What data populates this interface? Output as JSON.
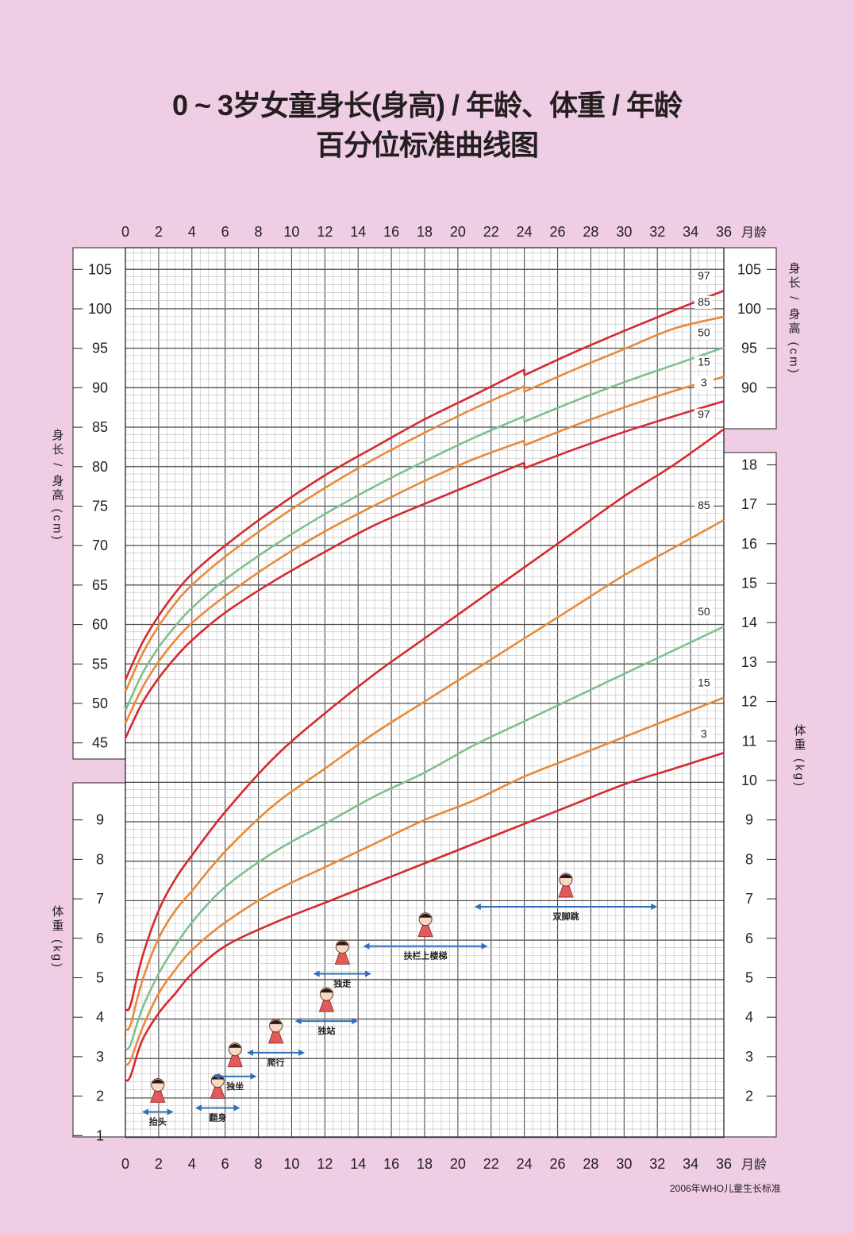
{
  "header": {
    "title_line1": "0 ~ 3岁女童身长(身高) / 年龄、体重 / 年龄",
    "title_line2": "百分位标准曲线图"
  },
  "footer": {
    "source": "2006年WHO儿童生长标准"
  },
  "chart_data": {
    "type": "line",
    "x_axis": {
      "label": "月龄",
      "ticks": [
        0,
        2,
        4,
        6,
        8,
        10,
        12,
        14,
        16,
        18,
        20,
        22,
        24,
        26,
        28,
        30,
        32,
        34,
        36
      ],
      "range": [
        0,
        36
      ]
    },
    "grid": true,
    "colors": {
      "p3": "#d42a30",
      "p15": "#e88a3a",
      "p50": "#7fc08e",
      "p85": "#e88a3a",
      "p97": "#d42a30",
      "milestone": "#2f6fba",
      "grid_major": "#4a4a4a",
      "grid_minor": "#bcbcbc",
      "bg_plot": "#ffffff"
    },
    "length": {
      "label": "身长 / 身高 (cm)",
      "y_ticks": [
        45,
        50,
        55,
        60,
        65,
        70,
        75,
        80,
        85,
        90,
        95,
        100,
        105
      ],
      "right_ticks": [
        90,
        95,
        100,
        105
      ],
      "y_range": [
        42,
        108
      ],
      "series": [
        {
          "name": "97",
          "x": [
            0,
            1,
            2,
            3,
            4,
            6,
            9,
            12,
            15,
            18,
            21,
            24,
            24,
            27,
            30,
            33,
            36
          ],
          "y": [
            53.0,
            57.6,
            61.1,
            64.0,
            66.4,
            70.0,
            74.7,
            78.9,
            82.5,
            86.0,
            89.1,
            92.3,
            91.6,
            94.5,
            97.2,
            99.8,
            102.3
          ]
        },
        {
          "name": "85",
          "x": [
            0,
            1,
            2,
            3,
            4,
            6,
            9,
            12,
            15,
            18,
            21,
            24,
            24,
            27,
            30,
            33,
            36
          ],
          "y": [
            51.5,
            56.2,
            59.8,
            62.7,
            65.0,
            68.6,
            73.2,
            77.3,
            81.0,
            84.3,
            87.4,
            90.2,
            89.5,
            92.3,
            94.9,
            97.5,
            99.0
          ]
        },
        {
          "name": "50",
          "x": [
            0,
            1,
            2,
            3,
            4,
            6,
            9,
            12,
            15,
            18,
            21,
            24,
            24,
            27,
            30,
            33,
            36
          ],
          "y": [
            49.1,
            53.7,
            57.1,
            59.8,
            62.1,
            65.7,
            70.1,
            74.0,
            77.5,
            80.7,
            83.7,
            86.4,
            85.7,
            88.3,
            90.7,
            92.9,
            95.1
          ]
        },
        {
          "name": "15",
          "x": [
            0,
            1,
            2,
            3,
            4,
            6,
            9,
            12,
            15,
            18,
            21,
            24,
            24,
            27,
            30,
            33,
            36
          ],
          "y": [
            47.5,
            51.9,
            55.3,
            58.0,
            60.2,
            63.6,
            68.0,
            71.8,
            75.1,
            78.2,
            81.0,
            83.3,
            82.7,
            85.2,
            87.5,
            89.6,
            91.4
          ]
        },
        {
          "name": "3",
          "x": [
            0,
            1,
            2,
            3,
            4,
            6,
            9,
            12,
            15,
            18,
            21,
            24,
            24,
            27,
            30,
            33,
            36
          ],
          "y": [
            45.6,
            50.0,
            53.2,
            55.8,
            58.0,
            61.5,
            65.6,
            69.2,
            72.6,
            75.3,
            77.9,
            80.5,
            79.8,
            82.2,
            84.4,
            86.4,
            88.3
          ]
        }
      ]
    },
    "weight": {
      "label": "体重 (kg)",
      "left_ticks": [
        1,
        2,
        3,
        4,
        5,
        6,
        7,
        8,
        9
      ],
      "right_ticks": [
        2,
        3,
        4,
        5,
        6,
        7,
        8,
        9,
        10,
        11,
        12,
        13,
        14,
        15,
        16,
        17,
        18
      ],
      "y_range": [
        0.5,
        18.5
      ],
      "series": [
        {
          "name": "97",
          "x": [
            0,
            0.3,
            1,
            2,
            3,
            4,
            6,
            9,
            12,
            15,
            18,
            21,
            24,
            27,
            30,
            33,
            36
          ],
          "y": [
            4.2,
            4.3,
            5.5,
            6.7,
            7.5,
            8.1,
            9.2,
            10.6,
            11.7,
            12.7,
            13.6,
            14.5,
            15.4,
            16.3,
            17.2,
            18.0,
            18.9
          ]
        },
        {
          "name": "85",
          "x": [
            0,
            0.3,
            1,
            2,
            3,
            4,
            6,
            9,
            12,
            15,
            18,
            21,
            24,
            27,
            30,
            33,
            36
          ],
          "y": [
            3.7,
            3.8,
            4.9,
            6.0,
            6.7,
            7.2,
            8.2,
            9.4,
            10.3,
            11.2,
            12.0,
            12.8,
            13.6,
            14.4,
            15.2,
            15.9,
            16.6
          ]
        },
        {
          "name": "50",
          "x": [
            0,
            0.3,
            1,
            2,
            3,
            4,
            6,
            9,
            12,
            15,
            18,
            21,
            24,
            27,
            30,
            33,
            36
          ],
          "y": [
            3.2,
            3.3,
            4.2,
            5.1,
            5.8,
            6.4,
            7.3,
            8.2,
            8.9,
            9.6,
            10.2,
            10.9,
            11.5,
            12.1,
            12.7,
            13.3,
            13.9
          ]
        },
        {
          "name": "15",
          "x": [
            0,
            0.3,
            1,
            2,
            3,
            4,
            6,
            9,
            12,
            15,
            18,
            21,
            24,
            27,
            30,
            33,
            36
          ],
          "y": [
            2.8,
            2.9,
            3.7,
            4.6,
            5.2,
            5.7,
            6.4,
            7.2,
            7.8,
            8.4,
            9.0,
            9.5,
            10.1,
            10.6,
            11.1,
            11.6,
            12.1
          ]
        },
        {
          "name": "3",
          "x": [
            0,
            0.3,
            1,
            2,
            3,
            4,
            6,
            9,
            12,
            15,
            18,
            21,
            24,
            27,
            30,
            33,
            36
          ],
          "y": [
            2.4,
            2.5,
            3.4,
            4.1,
            4.6,
            5.1,
            5.8,
            6.4,
            6.9,
            7.4,
            7.9,
            8.4,
            8.9,
            9.4,
            9.9,
            10.3,
            10.7
          ]
        }
      ]
    },
    "milestones": [
      {
        "label": "抬头",
        "start": 1.0,
        "end": 2.9,
        "level": 1.6
      },
      {
        "label": "翻身",
        "start": 4.2,
        "end": 6.9,
        "level": 1.7
      },
      {
        "label": "独坐",
        "start": 5.3,
        "end": 7.9,
        "level": 2.5
      },
      {
        "label": "爬行",
        "start": 7.3,
        "end": 10.8,
        "level": 3.1
      },
      {
        "label": "独站",
        "start": 10.2,
        "end": 14.0,
        "level": 3.9
      },
      {
        "label": "独走",
        "start": 11.3,
        "end": 14.8,
        "level": 5.1
      },
      {
        "label": "扶栏上楼梯",
        "start": 14.3,
        "end": 21.8,
        "level": 5.8
      },
      {
        "label": "双脚跳",
        "start": 21.0,
        "end": 32.0,
        "level": 6.8
      }
    ]
  }
}
